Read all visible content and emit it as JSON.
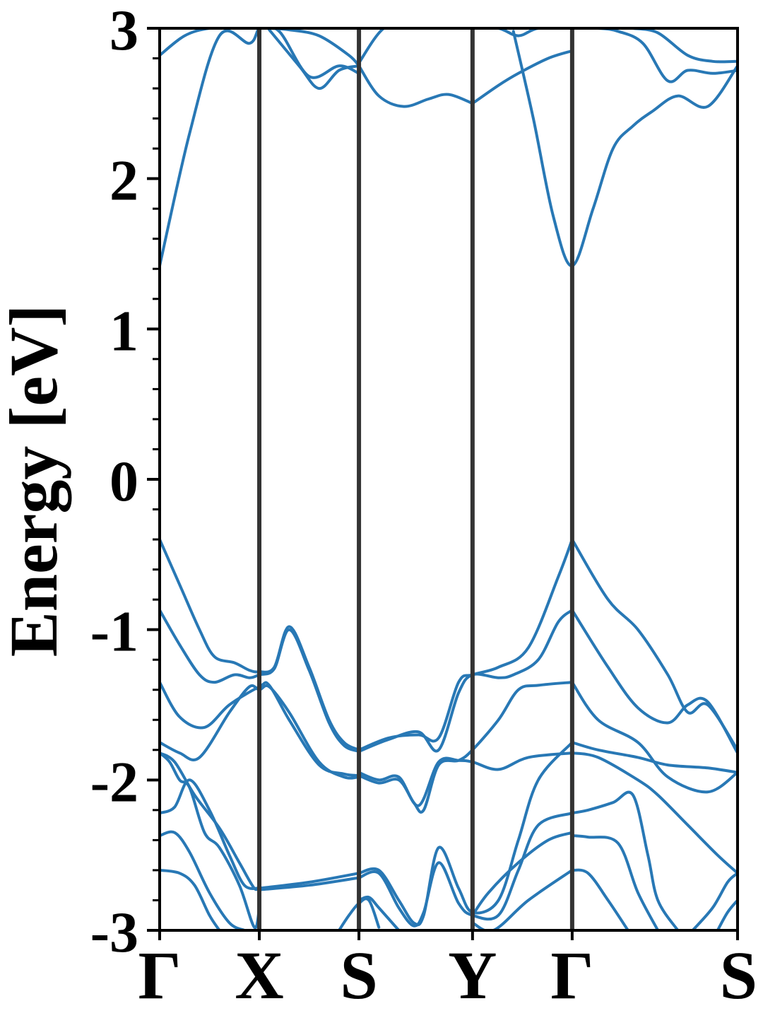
{
  "chart_data": {
    "type": "line",
    "title": "",
    "ylabel": "Energy [eV]",
    "xlabel": "",
    "ylim": [
      -3,
      3
    ],
    "y_ticks": [
      "3",
      "2",
      "1",
      "0",
      "-1",
      "-2",
      "-3"
    ],
    "k_points": [
      {
        "label": "Γ",
        "x": 0.0
      },
      {
        "label": "X",
        "x": 1.0
      },
      {
        "label": "S",
        "x": 2.0
      },
      {
        "label": "Y",
        "x": 3.14
      },
      {
        "label": "Γ",
        "x": 4.14
      },
      {
        "label": "S",
        "x": 5.8
      }
    ],
    "grid": false,
    "colors": {
      "bands": "#2878b5",
      "kpoint_lines": "#333333",
      "axes": "#000000"
    },
    "series": [
      {
        "x": [
          0,
          0.25,
          0.5,
          0.8,
          1.0
        ],
        "values": [
          2.82,
          2.95,
          3.0,
          3.0,
          3.0
        ]
      },
      {
        "x": [
          0,
          0.3,
          0.6,
          0.9,
          1.0,
          1.1,
          1.3,
          1.6,
          1.9,
          2.0
        ],
        "values": [
          1.42,
          2.3,
          2.95,
          2.9,
          3.0,
          3.0,
          2.99,
          2.95,
          2.82,
          2.75
        ]
      },
      {
        "x": [
          1.0,
          1.2,
          1.5,
          1.8,
          2.0
        ],
        "values": [
          3.0,
          2.98,
          2.68,
          2.75,
          2.7
        ]
      },
      {
        "x": [
          1.1,
          1.4,
          1.6,
          1.8,
          2.0
        ],
        "values": [
          2.99,
          2.75,
          2.6,
          2.72,
          2.75
        ]
      },
      {
        "x": [
          2.0,
          2.2,
          2.45,
          2.7,
          2.9,
          3.14
        ],
        "values": [
          2.75,
          2.55,
          2.48,
          2.53,
          2.56,
          2.5
        ]
      },
      {
        "x": [
          3.14,
          3.4,
          3.6,
          3.9,
          4.14
        ],
        "values": [
          2.5,
          2.62,
          2.7,
          2.8,
          2.85
        ]
      },
      {
        "x": [
          2.0,
          2.25,
          2.5,
          3.0,
          3.14,
          3.4,
          3.6,
          3.8,
          4.14
        ],
        "values": [
          2.77,
          3.0,
          3.0,
          3.0,
          3.0,
          3.0,
          2.95,
          3.0,
          3.0
        ]
      },
      {
        "x": [
          3.55,
          3.75,
          3.95,
          4.14,
          4.35,
          4.55,
          4.75,
          4.95,
          5.2,
          5.5,
          5.8
        ],
        "values": [
          2.98,
          2.4,
          1.75,
          1.42,
          1.8,
          2.2,
          2.35,
          2.45,
          2.55,
          2.48,
          2.75
        ]
      },
      {
        "x": [
          4.14,
          4.4,
          4.6,
          4.85,
          5.1,
          5.3,
          5.55,
          5.8
        ],
        "values": [
          3.0,
          3.0,
          2.98,
          2.9,
          2.65,
          2.72,
          2.7,
          2.72
        ]
      },
      {
        "x": [
          4.75,
          5.0,
          5.3,
          5.55,
          5.8
        ],
        "values": [
          3.0,
          2.97,
          2.82,
          2.78,
          2.78
        ]
      },
      {
        "x": [
          0,
          0.2,
          0.4,
          0.55,
          0.75,
          0.9,
          1.0,
          1.15,
          1.3,
          1.5,
          1.7,
          1.85,
          2.0
        ],
        "values": [
          -0.4,
          -0.7,
          -1.0,
          -1.18,
          -1.22,
          -1.27,
          -1.28,
          -1.25,
          -0.98,
          -1.25,
          -1.6,
          -1.75,
          -1.8
        ]
      },
      {
        "x": [
          0,
          0.2,
          0.4,
          0.55,
          0.75,
          0.9,
          1.0,
          1.15,
          1.3,
          1.5,
          1.7,
          1.85,
          2.0
        ],
        "values": [
          -0.87,
          -1.1,
          -1.3,
          -1.35,
          -1.3,
          -1.32,
          -1.3,
          -1.26,
          -1.0,
          -1.27,
          -1.62,
          -1.77,
          -1.81
        ]
      },
      {
        "x": [
          0,
          0.2,
          0.45,
          0.7,
          1.0,
          1.1,
          1.3,
          1.6,
          1.85,
          2.0
        ],
        "values": [
          -1.35,
          -1.58,
          -1.65,
          -1.5,
          -1.38,
          -1.37,
          -1.6,
          -1.9,
          -1.96,
          -1.97
        ]
      },
      {
        "x": [
          0,
          0.2,
          0.4,
          0.7,
          0.9,
          1.0,
          1.1,
          1.3,
          1.6,
          1.85,
          2.0
        ],
        "values": [
          -1.75,
          -1.82,
          -1.85,
          -1.55,
          -1.38,
          -1.4,
          -1.38,
          -1.55,
          -1.88,
          -1.98,
          -1.98
        ]
      },
      {
        "x": [
          0,
          0.15,
          0.35,
          0.6,
          0.8,
          0.95,
          1.0
        ],
        "values": [
          -1.82,
          -1.88,
          -2.1,
          -2.32,
          -2.55,
          -2.72,
          -2.7
        ]
      },
      {
        "x": [
          0,
          0.15,
          0.3,
          0.5,
          0.7,
          0.85,
          1.0
        ],
        "values": [
          -2.22,
          -2.18,
          -2.0,
          -2.2,
          -2.5,
          -2.7,
          -2.72
        ]
      },
      {
        "x": [
          0,
          0.1,
          0.2,
          0.3,
          0.45,
          0.6,
          0.8,
          0.95,
          1.0
        ],
        "values": [
          -1.82,
          -1.88,
          -2.0,
          -2.05,
          -2.35,
          -2.45,
          -2.7,
          -2.98,
          -2.85
        ]
      },
      {
        "x": [
          0,
          0.15,
          0.3,
          0.5,
          0.7,
          0.85
        ],
        "values": [
          -2.37,
          -2.35,
          -2.48,
          -2.75,
          -2.95,
          -3.0
        ]
      },
      {
        "x": [
          0,
          0.2,
          0.35,
          0.5,
          0.6
        ],
        "values": [
          -2.6,
          -2.62,
          -2.7,
          -2.9,
          -3.0
        ]
      },
      {
        "x": [
          1.0,
          1.5,
          2.0
        ],
        "values": [
          -2.72,
          -2.68,
          -2.62
        ]
      },
      {
        "x": [
          1.0,
          1.5,
          2.0
        ],
        "values": [
          -2.73,
          -2.7,
          -2.65
        ]
      },
      {
        "x": [
          2.0,
          2.3,
          2.6,
          2.8,
          3.0,
          3.14,
          3.4,
          3.7,
          4.0,
          4.14
        ],
        "values": [
          -1.8,
          -1.72,
          -1.7,
          -1.72,
          -1.35,
          -1.3,
          -1.25,
          -1.12,
          -0.65,
          -0.4
        ]
      },
      {
        "x": [
          2.0,
          2.3,
          2.6,
          2.8,
          3.0,
          3.14,
          3.4,
          3.55,
          3.8,
          4.0,
          4.14
        ],
        "values": [
          -1.81,
          -1.73,
          -1.68,
          -1.8,
          -1.42,
          -1.3,
          -1.32,
          -1.3,
          -1.2,
          -0.95,
          -0.87
        ]
      },
      {
        "x": [
          2.0,
          2.2,
          2.4,
          2.6,
          2.8,
          3.0,
          3.14,
          3.4,
          3.7,
          4.14
        ],
        "values": [
          -1.95,
          -2.0,
          -1.98,
          -2.17,
          -1.88,
          -1.87,
          -1.88,
          -1.93,
          -1.85,
          -1.82
        ]
      },
      {
        "x": [
          2.0,
          2.2,
          2.4,
          2.55,
          2.65,
          2.8,
          3.0,
          3.14,
          3.4,
          3.6,
          3.8,
          4.14
        ],
        "values": [
          -1.97,
          -2.02,
          -2.0,
          -2.15,
          -2.2,
          -1.9,
          -1.87,
          -1.8,
          -1.6,
          -1.4,
          -1.37,
          -1.35
        ]
      },
      {
        "x": [
          2.0,
          2.2,
          2.4,
          2.55,
          2.65,
          2.8,
          3.0,
          3.14,
          3.4,
          3.6,
          3.8,
          4.14
        ],
        "values": [
          -2.62,
          -2.6,
          -2.8,
          -2.95,
          -2.9,
          -2.45,
          -2.72,
          -2.88,
          -2.8,
          -2.4,
          -2.0,
          -1.75
        ]
      },
      {
        "x": [
          2.0,
          2.2,
          2.4,
          2.55,
          2.65,
          2.8,
          3.0,
          3.14,
          3.4,
          3.6,
          3.8,
          4.14
        ],
        "values": [
          -2.65,
          -2.62,
          -2.85,
          -2.97,
          -2.88,
          -2.55,
          -2.82,
          -2.9,
          -2.9,
          -2.6,
          -2.3,
          -2.22
        ]
      },
      {
        "x": [
          2.0,
          2.1,
          2.2,
          2.4
        ],
        "values": [
          -2.8,
          -2.78,
          -2.85,
          -3.0
        ]
      },
      {
        "x": [
          1.8,
          1.9,
          2.0,
          2.1,
          2.2
        ],
        "values": [
          -3.0,
          -2.9,
          -2.82,
          -2.8,
          -2.98
        ]
      },
      {
        "x": [
          3.14,
          3.3,
          3.6,
          3.9,
          4.14
        ],
        "values": [
          -2.9,
          -2.75,
          -2.55,
          -2.4,
          -2.35
        ]
      },
      {
        "x": [
          3.14,
          3.35,
          3.7,
          4.14
        ],
        "values": [
          -2.95,
          -3.0,
          -2.8,
          -2.6
        ]
      },
      {
        "x": [
          4.14,
          4.5,
          4.8,
          5.1,
          5.3,
          5.5,
          5.8
        ],
        "values": [
          -0.4,
          -0.8,
          -1.0,
          -1.3,
          -1.55,
          -1.5,
          -1.8
        ]
      },
      {
        "x": [
          4.14,
          4.5,
          4.8,
          5.1,
          5.3,
          5.5,
          5.8
        ],
        "values": [
          -0.87,
          -1.25,
          -1.52,
          -1.62,
          -1.5,
          -1.48,
          -1.82
        ]
      },
      {
        "x": [
          4.14,
          4.4,
          4.8,
          5.1,
          5.5,
          5.8
        ],
        "values": [
          -1.35,
          -1.6,
          -1.75,
          -1.98,
          -2.08,
          -1.95
        ]
      },
      {
        "x": [
          4.14,
          4.4,
          4.8,
          5.1,
          5.5,
          5.8
        ],
        "values": [
          -1.75,
          -1.8,
          -1.85,
          -1.9,
          -1.92,
          -1.95
        ]
      },
      {
        "x": [
          4.14,
          4.4,
          4.8,
          5.0,
          5.3,
          5.6,
          5.8
        ],
        "values": [
          -1.82,
          -1.85,
          -2.0,
          -2.1,
          -2.3,
          -2.5,
          -2.62
        ]
      },
      {
        "x": [
          4.14,
          4.3,
          4.55,
          4.75,
          4.9,
          5.0,
          5.2
        ],
        "values": [
          -2.22,
          -2.2,
          -2.15,
          -2.1,
          -2.5,
          -2.8,
          -3.0
        ]
      },
      {
        "x": [
          4.14,
          4.3,
          4.6,
          4.8,
          5.0
        ],
        "values": [
          -2.37,
          -2.38,
          -2.42,
          -2.75,
          -3.0
        ]
      },
      {
        "x": [
          4.14,
          4.3,
          4.5,
          4.7
        ],
        "values": [
          -2.6,
          -2.62,
          -2.8,
          -3.0
        ]
      },
      {
        "x": [
          5.35,
          5.55,
          5.7,
          5.8
        ],
        "values": [
          -3.0,
          -2.85,
          -2.68,
          -2.62
        ]
      },
      {
        "x": [
          5.6,
          5.7,
          5.8
        ],
        "values": [
          -3.0,
          -2.88,
          -2.8
        ]
      }
    ]
  }
}
